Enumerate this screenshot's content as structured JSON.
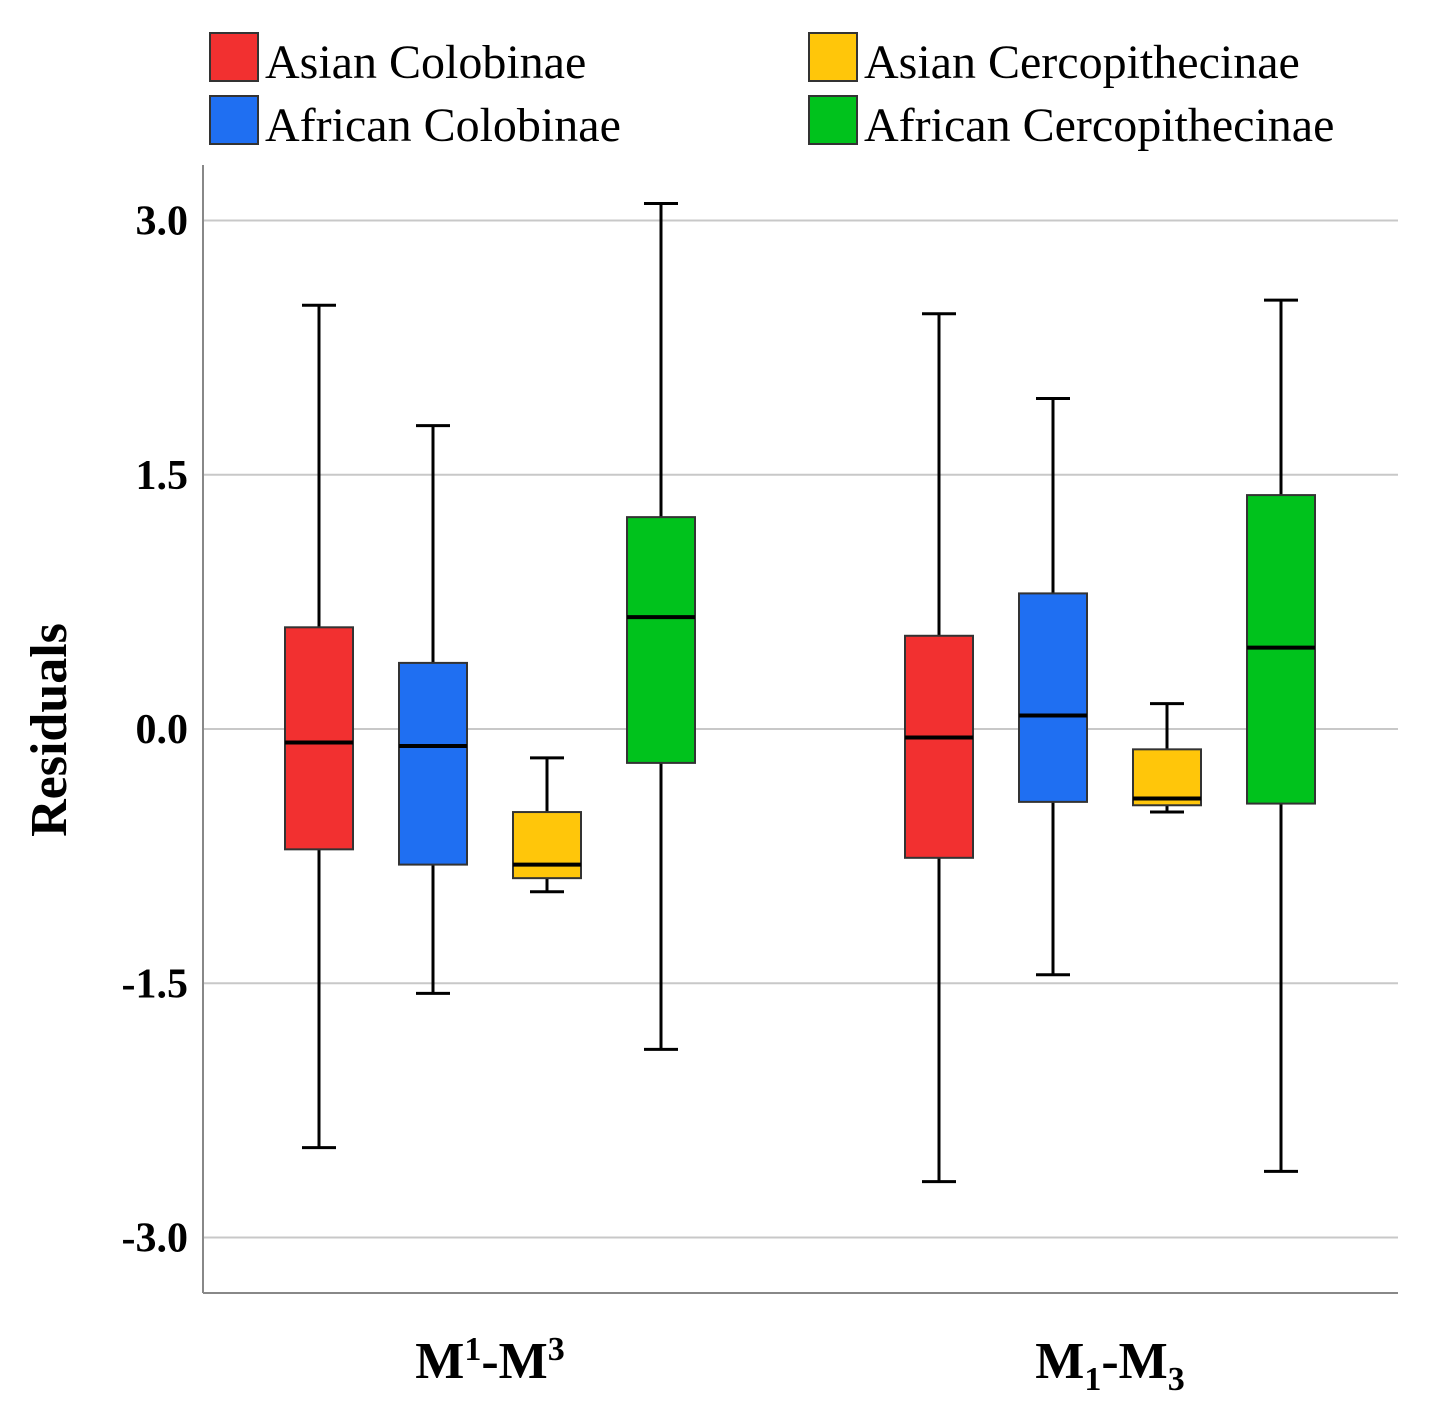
{
  "chart_data": {
    "type": "boxplot",
    "title": "",
    "ylabel": "Residuals",
    "xlabel": "",
    "ylim": [
      -3.33,
      3.33
    ],
    "y_ticks": [
      3.0,
      1.5,
      0.0,
      -1.5,
      -3.0
    ],
    "y_tick_labels": [
      "3.0",
      "1.5",
      "0.0",
      "-1.5",
      "-3.0"
    ],
    "grid": true,
    "legend_position": "top",
    "categories": [
      {
        "base": "M",
        "sup1": "1",
        "sub1": "",
        "mid": "-M",
        "sup2": "3",
        "sub2": ""
      },
      {
        "base": "M",
        "sup1": "",
        "sub1": "1",
        "mid": "-M",
        "sup2": "",
        "sub2": "3"
      }
    ],
    "series": [
      {
        "name": "Asian Colobinae",
        "color": "#f23030",
        "boxes": [
          {
            "min": -2.47,
            "q1": -0.71,
            "median": -0.08,
            "q3": 0.6,
            "max": 2.5
          },
          {
            "min": -2.67,
            "q1": -0.76,
            "median": -0.05,
            "q3": 0.55,
            "max": 2.45
          }
        ]
      },
      {
        "name": "African Colobinae",
        "color": "#1f6ff2",
        "boxes": [
          {
            "min": -1.56,
            "q1": -0.8,
            "median": -0.1,
            "q3": 0.39,
            "max": 1.79
          },
          {
            "min": -1.45,
            "q1": -0.43,
            "median": 0.08,
            "q3": 0.8,
            "max": 1.95
          }
        ]
      },
      {
        "name": "Asian Cercopithecinae",
        "color": "#ffc60a",
        "boxes": [
          {
            "min": -0.96,
            "q1": -0.88,
            "median": -0.8,
            "q3": -0.49,
            "max": -0.17
          },
          {
            "min": -0.49,
            "q1": -0.45,
            "median": -0.41,
            "q3": -0.12,
            "max": 0.15
          }
        ]
      },
      {
        "name": "African Cercopithecinae",
        "color": "#00c21c",
        "boxes": [
          {
            "min": -1.89,
            "q1": -0.2,
            "median": 0.66,
            "q3": 1.25,
            "max": 3.1
          },
          {
            "min": -2.61,
            "q1": -0.44,
            "median": 0.48,
            "q3": 1.38,
            "max": 2.53
          }
        ]
      }
    ]
  }
}
